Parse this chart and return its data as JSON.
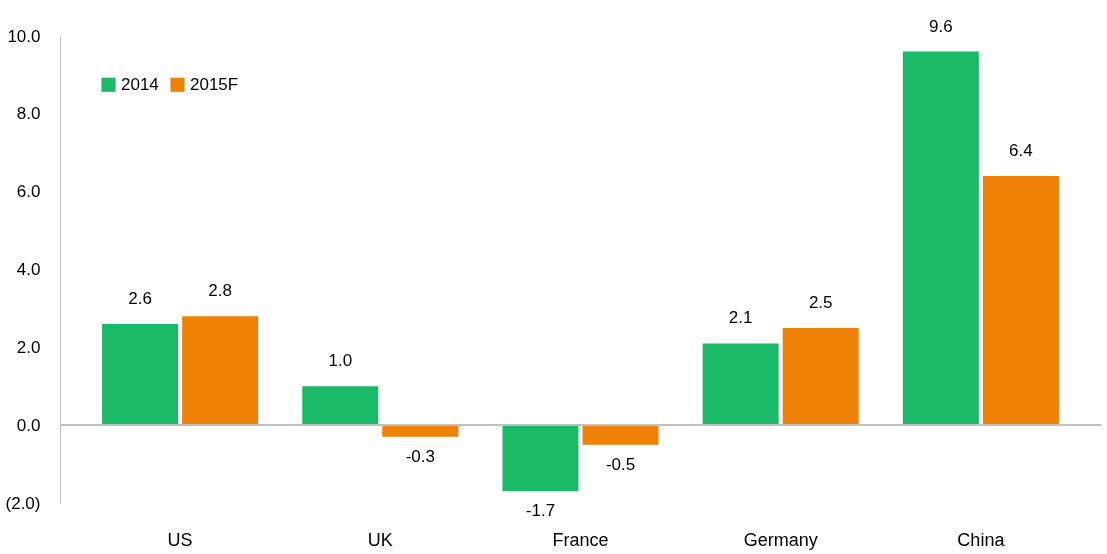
{
  "chart_data": {
    "type": "bar",
    "categories": [
      "US",
      "UK",
      "France",
      "Germany",
      "China"
    ],
    "series": [
      {
        "name": "2014",
        "color": "#1aba68",
        "values": [
          2.6,
          1.0,
          -1.7,
          2.1,
          9.6
        ],
        "value_labels": [
          "2.6",
          "1.0",
          "-1.7",
          "2.1",
          "9.6"
        ]
      },
      {
        "name": "2015F",
        "color": "#ee8106",
        "values": [
          2.8,
          -0.3,
          -0.5,
          2.5,
          6.4
        ],
        "value_labels": [
          "2.8",
          "-0.3",
          "-0.5",
          "2.5",
          "6.4"
        ]
      }
    ],
    "ylim": [
      -2,
      10
    ],
    "yticks": [
      {
        "value": -2,
        "label": "(2.0)"
      },
      {
        "value": 0,
        "label": "0.0"
      },
      {
        "value": 2,
        "label": "2.0"
      },
      {
        "value": 4,
        "label": "4.0"
      },
      {
        "value": 6,
        "label": "6.0"
      },
      {
        "value": 8,
        "label": "8.0"
      },
      {
        "value": 10,
        "label": "10.0"
      }
    ],
    "legend": "top left"
  }
}
